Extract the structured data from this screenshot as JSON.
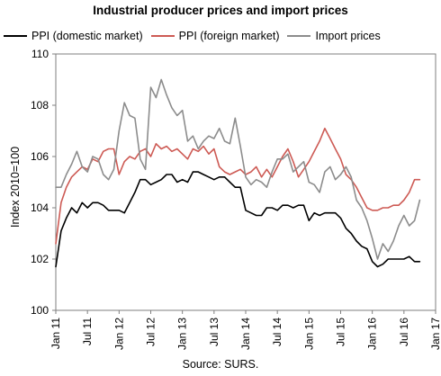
{
  "chart_data": {
    "type": "line",
    "title": "Industrial producer prices and import prices",
    "ylabel": "Index 2010=100",
    "xlabel": "",
    "ylim": [
      100,
      110
    ],
    "yticks": [
      100,
      102,
      104,
      106,
      108,
      110
    ],
    "xticks": [
      "Jan 11",
      "Jul 11",
      "Jan 12",
      "Jul 12",
      "Jan 13",
      "Jul 13",
      "Jan 14",
      "Jul 14",
      "Jan 15",
      "Jul 15",
      "Jan 16",
      "Jul 16",
      "Jan 17"
    ],
    "grid": false,
    "legend": "top",
    "source": "Source: SURS.",
    "x_start": "2011-01",
    "series": [
      {
        "name": "PPI (domestic market)",
        "color": "#000000",
        "values": [
          101.7,
          103.1,
          103.6,
          104.0,
          103.8,
          104.2,
          104.0,
          104.2,
          104.2,
          104.1,
          103.9,
          103.9,
          103.9,
          103.8,
          104.2,
          104.6,
          105.1,
          105.1,
          104.9,
          105.0,
          105.1,
          105.3,
          105.3,
          105.0,
          105.1,
          105.0,
          105.4,
          105.4,
          105.3,
          105.2,
          105.1,
          105.2,
          105.2,
          105.0,
          104.8,
          104.8,
          103.9,
          103.8,
          103.7,
          103.7,
          104.0,
          104.0,
          103.9,
          104.1,
          104.1,
          104.0,
          104.1,
          104.1,
          103.5,
          103.8,
          103.7,
          103.8,
          103.8,
          103.8,
          103.6,
          103.2,
          103.0,
          102.7,
          102.5,
          102.4,
          101.9,
          101.7,
          101.8,
          102.0,
          102.0,
          102.0,
          102.0,
          102.1,
          101.9,
          101.9
        ]
      },
      {
        "name": "PPI (foreign market)",
        "color": "#cd5a54",
        "values": [
          102.6,
          104.2,
          104.8,
          105.2,
          105.4,
          105.6,
          105.5,
          105.9,
          105.8,
          106.2,
          106.3,
          106.3,
          105.3,
          105.8,
          106.0,
          105.9,
          106.2,
          106.3,
          106.0,
          106.5,
          106.3,
          106.4,
          106.2,
          106.3,
          106.1,
          105.9,
          106.3,
          106.2,
          106.4,
          106.1,
          106.3,
          105.6,
          105.4,
          105.3,
          105.4,
          105.5,
          105.3,
          105.4,
          105.6,
          105.2,
          105.5,
          105.2,
          105.6,
          106.0,
          106.3,
          105.8,
          105.2,
          105.5,
          105.8,
          106.2,
          106.6,
          107.1,
          106.7,
          106.3,
          105.9,
          105.3,
          105.1,
          104.8,
          104.4,
          104.0,
          103.9,
          103.9,
          104.0,
          104.0,
          104.1,
          104.1,
          104.3,
          104.6,
          105.1,
          105.1
        ]
      },
      {
        "name": "Import prices",
        "color": "#8c8c8c",
        "values": [
          104.8,
          104.8,
          105.3,
          105.7,
          106.2,
          105.6,
          105.4,
          106.0,
          105.9,
          105.3,
          105.1,
          105.5,
          107.0,
          108.1,
          107.6,
          107.5,
          105.9,
          105.5,
          108.7,
          108.3,
          109.0,
          108.4,
          107.9,
          107.6,
          107.8,
          106.6,
          106.8,
          106.3,
          106.6,
          106.8,
          106.7,
          107.1,
          106.6,
          106.5,
          107.5,
          106.4,
          105.2,
          104.9,
          105.1,
          105.0,
          104.8,
          105.4,
          105.9,
          105.9,
          106.1,
          105.4,
          105.6,
          105.8,
          105.0,
          104.9,
          104.6,
          105.4,
          105.6,
          105.1,
          105.3,
          105.6,
          105.2,
          104.3,
          104.0,
          103.5,
          102.8,
          102.0,
          102.6,
          102.3,
          102.7,
          103.3,
          103.7,
          103.3,
          103.5,
          104.3
        ]
      }
    ]
  }
}
